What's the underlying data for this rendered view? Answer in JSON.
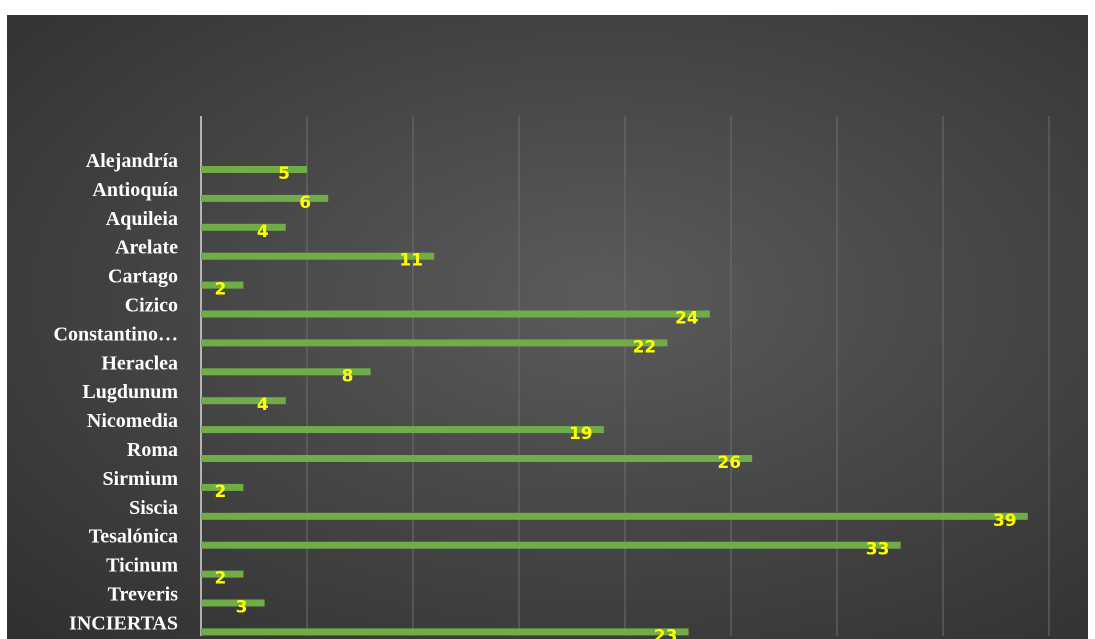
{
  "chart_data": {
    "type": "bar",
    "orientation": "horizontal",
    "categories": [
      "Alejandría",
      "Antioquía",
      "Aquileia",
      "Arelate",
      "Cartago",
      "Cizico",
      "Constantino…",
      "Heraclea",
      "Lugdunum",
      "Nicomedia",
      "Roma",
      "Sirmium",
      "Siscia",
      "Tesalónica",
      "Ticinum",
      "Treveris",
      "INCIERTAS"
    ],
    "values": [
      5,
      6,
      4,
      11,
      2,
      24,
      22,
      8,
      4,
      19,
      26,
      2,
      39,
      33,
      2,
      3,
      23
    ],
    "xlim": [
      0,
      40
    ],
    "grid": true,
    "bar_color": "#70ad47",
    "label_color": "#ffff00",
    "category_label_color": "#ffffff",
    "background_color": "#4a4a4a"
  }
}
